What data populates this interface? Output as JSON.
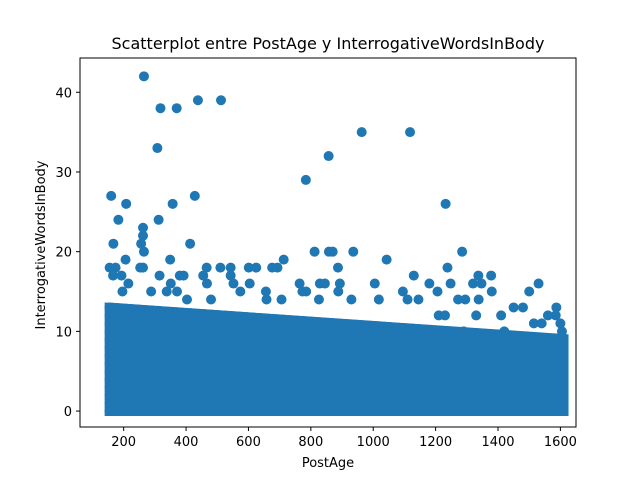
{
  "chart_data": {
    "type": "scatter",
    "title": "Scatterplot entre PostAge y InterrogativeWordsInBody",
    "xlabel": "PostAge",
    "ylabel": "InterrogativeWordsInBody",
    "xlim": [
      60,
      1650
    ],
    "ylim": [
      -2,
      44.3
    ],
    "xticks": [
      200,
      400,
      600,
      800,
      1000,
      1200,
      1400,
      1600
    ],
    "yticks": [
      0,
      10,
      20,
      30,
      40
    ],
    "grid": false,
    "legend": "none",
    "color": "#1f77b4",
    "dense_band": {
      "x_range": [
        155,
        1610
      ],
      "y_top_start": 13,
      "y_top_end": 9
    },
    "points": [
      {
        "x": 265,
        "y": 42
      },
      {
        "x": 318,
        "y": 38
      },
      {
        "x": 370,
        "y": 38
      },
      {
        "x": 438,
        "y": 39
      },
      {
        "x": 512,
        "y": 39
      },
      {
        "x": 308,
        "y": 33
      },
      {
        "x": 963,
        "y": 35
      },
      {
        "x": 1118,
        "y": 35
      },
      {
        "x": 857,
        "y": 32
      },
      {
        "x": 784,
        "y": 29
      },
      {
        "x": 160,
        "y": 27
      },
      {
        "x": 428,
        "y": 27
      },
      {
        "x": 1232,
        "y": 26
      },
      {
        "x": 208,
        "y": 26
      },
      {
        "x": 357,
        "y": 26
      },
      {
        "x": 183,
        "y": 24
      },
      {
        "x": 312,
        "y": 24
      },
      {
        "x": 262,
        "y": 23
      },
      {
        "x": 262,
        "y": 22
      },
      {
        "x": 167,
        "y": 21
      },
      {
        "x": 256,
        "y": 21
      },
      {
        "x": 413,
        "y": 21
      },
      {
        "x": 265,
        "y": 20
      },
      {
        "x": 812,
        "y": 20
      },
      {
        "x": 858,
        "y": 20
      },
      {
        "x": 870,
        "y": 20
      },
      {
        "x": 936,
        "y": 20
      },
      {
        "x": 1285,
        "y": 20
      },
      {
        "x": 1043,
        "y": 19
      },
      {
        "x": 206,
        "y": 19
      },
      {
        "x": 349,
        "y": 19
      },
      {
        "x": 713,
        "y": 19
      },
      {
        "x": 155,
        "y": 18
      },
      {
        "x": 174,
        "y": 18
      },
      {
        "x": 253,
        "y": 18
      },
      {
        "x": 262,
        "y": 18
      },
      {
        "x": 466,
        "y": 18
      },
      {
        "x": 510,
        "y": 18
      },
      {
        "x": 543,
        "y": 18
      },
      {
        "x": 601,
        "y": 18
      },
      {
        "x": 625,
        "y": 18
      },
      {
        "x": 676,
        "y": 18
      },
      {
        "x": 693,
        "y": 18
      },
      {
        "x": 887,
        "y": 18
      },
      {
        "x": 1238,
        "y": 18
      },
      {
        "x": 166,
        "y": 17
      },
      {
        "x": 193,
        "y": 17
      },
      {
        "x": 315,
        "y": 17
      },
      {
        "x": 380,
        "y": 17
      },
      {
        "x": 392,
        "y": 17
      },
      {
        "x": 455,
        "y": 17
      },
      {
        "x": 543,
        "y": 17
      },
      {
        "x": 1130,
        "y": 17
      },
      {
        "x": 1337,
        "y": 17
      },
      {
        "x": 1378,
        "y": 17
      },
      {
        "x": 215,
        "y": 16
      },
      {
        "x": 351,
        "y": 16
      },
      {
        "x": 467,
        "y": 16
      },
      {
        "x": 552,
        "y": 16
      },
      {
        "x": 604,
        "y": 16
      },
      {
        "x": 764,
        "y": 16
      },
      {
        "x": 829,
        "y": 16
      },
      {
        "x": 845,
        "y": 16
      },
      {
        "x": 893,
        "y": 16
      },
      {
        "x": 1005,
        "y": 16
      },
      {
        "x": 1180,
        "y": 16
      },
      {
        "x": 1248,
        "y": 16
      },
      {
        "x": 1320,
        "y": 16
      },
      {
        "x": 1347,
        "y": 16
      },
      {
        "x": 1530,
        "y": 16
      },
      {
        "x": 196,
        "y": 15
      },
      {
        "x": 288,
        "y": 15
      },
      {
        "x": 338,
        "y": 15
      },
      {
        "x": 371,
        "y": 15
      },
      {
        "x": 574,
        "y": 15
      },
      {
        "x": 656,
        "y": 15
      },
      {
        "x": 773,
        "y": 15
      },
      {
        "x": 785,
        "y": 15
      },
      {
        "x": 888,
        "y": 15
      },
      {
        "x": 1095,
        "y": 15
      },
      {
        "x": 1206,
        "y": 15
      },
      {
        "x": 1380,
        "y": 15
      },
      {
        "x": 1500,
        "y": 15
      },
      {
        "x": 403,
        "y": 14
      },
      {
        "x": 480,
        "y": 14
      },
      {
        "x": 658,
        "y": 14
      },
      {
        "x": 706,
        "y": 14
      },
      {
        "x": 826,
        "y": 14
      },
      {
        "x": 930,
        "y": 14
      },
      {
        "x": 1018,
        "y": 14
      },
      {
        "x": 1110,
        "y": 14
      },
      {
        "x": 1145,
        "y": 14
      },
      {
        "x": 1272,
        "y": 14
      },
      {
        "x": 1295,
        "y": 14
      },
      {
        "x": 1338,
        "y": 14
      },
      {
        "x": 1450,
        "y": 13
      },
      {
        "x": 1587,
        "y": 13
      },
      {
        "x": 1480,
        "y": 13
      },
      {
        "x": 1560,
        "y": 12
      },
      {
        "x": 1210,
        "y": 12
      },
      {
        "x": 1230,
        "y": 12
      },
      {
        "x": 1410,
        "y": 12
      },
      {
        "x": 1330,
        "y": 12
      },
      {
        "x": 1585,
        "y": 12
      },
      {
        "x": 1600,
        "y": 11
      },
      {
        "x": 1515,
        "y": 11
      },
      {
        "x": 1540,
        "y": 11
      },
      {
        "x": 1605,
        "y": 10
      },
      {
        "x": 1290,
        "y": 10
      },
      {
        "x": 1250,
        "y": 10
      },
      {
        "x": 1420,
        "y": 10
      }
    ]
  }
}
